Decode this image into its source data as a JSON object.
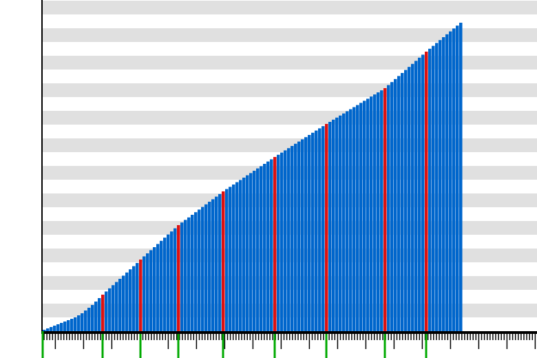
{
  "chart_data": {
    "type": "bar",
    "values": [
      0.1,
      0.2,
      0.3,
      0.4,
      0.5,
      0.6,
      0.7,
      0.8,
      0.9,
      1.0,
      1.15,
      1.3,
      1.5,
      1.7,
      1.9,
      2.15,
      2.4,
      2.65,
      2.88,
      3.11,
      3.34,
      3.57,
      3.8,
      4.03,
      4.26,
      4.49,
      4.72,
      4.95,
      5.2,
      5.43,
      5.65,
      5.88,
      6.1,
      6.33,
      6.56,
      6.79,
      7.02,
      7.24,
      7.47,
      7.7,
      7.89,
      8.08,
      8.26,
      8.45,
      8.64,
      8.83,
      9.02,
      9.21,
      9.4,
      9.58,
      9.77,
      9.96,
      10.15,
      10.32,
      10.48,
      10.65,
      10.82,
      10.98,
      11.15,
      11.32,
      11.48,
      11.65,
      11.82,
      11.98,
      12.15,
      12.32,
      12.48,
      12.65,
      12.81,
      12.97,
      13.13,
      13.29,
      13.45,
      13.61,
      13.77,
      13.93,
      14.09,
      14.25,
      14.41,
      14.57,
      14.73,
      14.89,
      15.05,
      15.2,
      15.36,
      15.51,
      15.66,
      15.81,
      15.97,
      16.12,
      16.27,
      16.42,
      16.58,
      16.73,
      16.88,
      17.04,
      17.19,
      17.34,
      17.49,
      17.65,
      17.87,
      18.09,
      18.31,
      18.53,
      18.75,
      18.97,
      19.19,
      19.41,
      19.63,
      19.86,
      20.08,
      20.3,
      20.51,
      20.72,
      20.93,
      21.14,
      21.35,
      21.56,
      21.77,
      21.98,
      22.19,
      22.4
    ],
    "color": "#0066cc",
    "highlighted": [
      17,
      28,
      39,
      52,
      67,
      82,
      99,
      111
    ],
    "highlight_color": "#dd1111",
    "marker_color": "#00aa00",
    "ylim": [
      0,
      24
    ],
    "yticks": [
      0,
      1,
      2,
      3,
      4,
      5,
      6,
      7,
      8,
      9,
      10,
      11,
      12,
      13,
      14,
      15,
      16,
      17,
      18,
      19,
      20,
      21,
      22,
      23,
      24
    ],
    "grid": "bands"
  }
}
